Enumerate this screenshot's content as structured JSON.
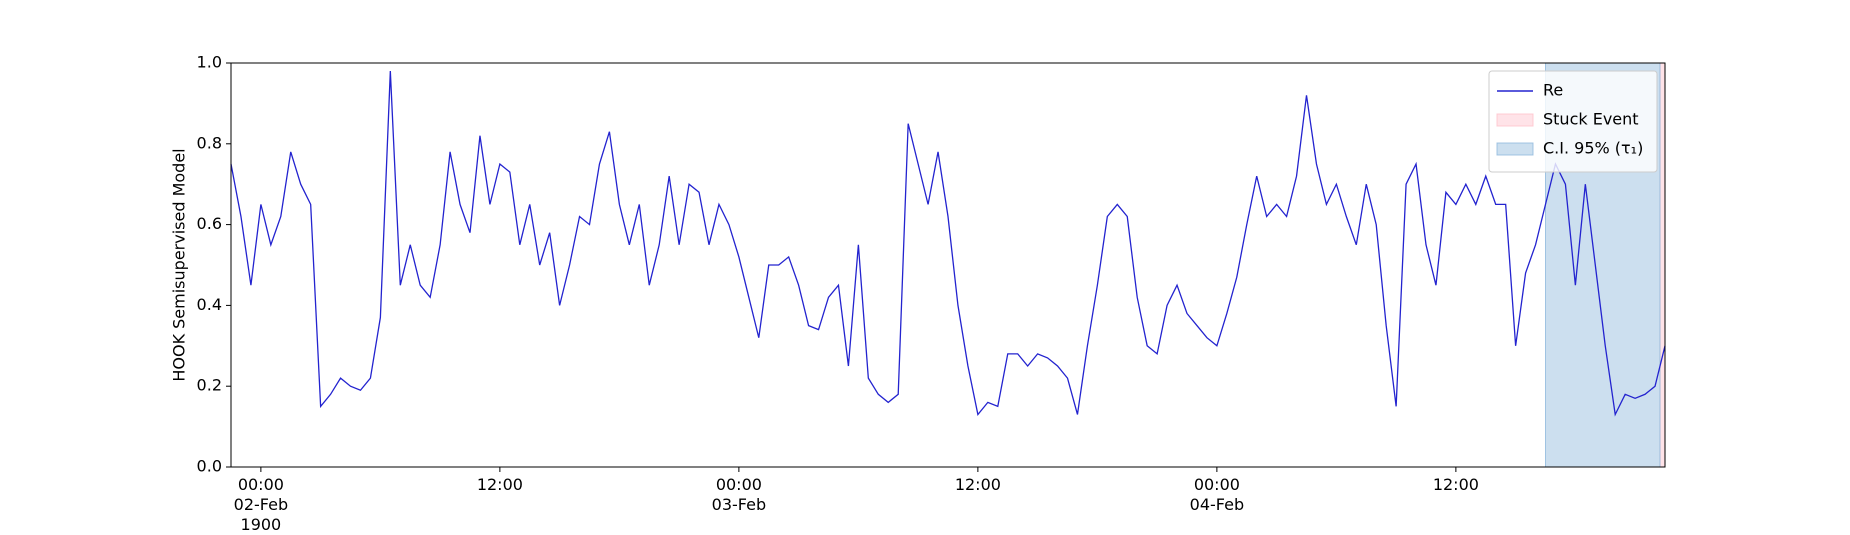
{
  "chart_data": {
    "type": "line",
    "ylabel": "HOOK Semisupervised Model",
    "x": [
      "1900-02-01T22:30",
      "1900-02-01T23:00",
      "1900-02-01T23:30",
      "1900-02-02T00:00",
      "1900-02-02T00:30",
      "1900-02-02T01:00",
      "1900-02-02T01:30",
      "1900-02-02T02:00",
      "1900-02-02T02:30",
      "1900-02-02T03:00",
      "1900-02-02T03:30",
      "1900-02-02T04:00",
      "1900-02-02T04:30",
      "1900-02-02T05:00",
      "1900-02-02T05:30",
      "1900-02-02T06:00",
      "1900-02-02T06:30",
      "1900-02-02T07:00",
      "1900-02-02T07:30",
      "1900-02-02T08:00",
      "1900-02-02T08:30",
      "1900-02-02T09:00",
      "1900-02-02T09:30",
      "1900-02-02T10:00",
      "1900-02-02T10:30",
      "1900-02-02T11:00",
      "1900-02-02T11:30",
      "1900-02-02T12:00",
      "1900-02-02T12:30",
      "1900-02-02T13:00",
      "1900-02-02T13:30",
      "1900-02-02T14:00",
      "1900-02-02T14:30",
      "1900-02-02T15:00",
      "1900-02-02T15:30",
      "1900-02-02T16:00",
      "1900-02-02T16:30",
      "1900-02-02T17:00",
      "1900-02-02T17:30",
      "1900-02-02T18:00",
      "1900-02-02T18:30",
      "1900-02-02T19:00",
      "1900-02-02T19:30",
      "1900-02-02T20:00",
      "1900-02-02T20:30",
      "1900-02-02T21:00",
      "1900-02-02T21:30",
      "1900-02-02T22:00",
      "1900-02-02T22:30",
      "1900-02-02T23:00",
      "1900-02-02T23:30",
      "1900-02-03T00:00",
      "1900-02-03T00:30",
      "1900-02-03T01:00",
      "1900-02-03T01:30",
      "1900-02-03T02:00",
      "1900-02-03T02:30",
      "1900-02-03T03:00",
      "1900-02-03T03:30",
      "1900-02-03T04:00",
      "1900-02-03T04:30",
      "1900-02-03T05:00",
      "1900-02-03T05:30",
      "1900-02-03T06:00",
      "1900-02-03T06:30",
      "1900-02-03T07:00",
      "1900-02-03T07:30",
      "1900-02-03T08:00",
      "1900-02-03T08:30",
      "1900-02-03T09:00",
      "1900-02-03T09:30",
      "1900-02-03T10:00",
      "1900-02-03T10:30",
      "1900-02-03T11:00",
      "1900-02-03T11:30",
      "1900-02-03T12:00",
      "1900-02-03T12:30",
      "1900-02-03T13:00",
      "1900-02-03T13:30",
      "1900-02-03T14:00",
      "1900-02-03T14:30",
      "1900-02-03T15:00",
      "1900-02-03T15:30",
      "1900-02-03T16:00",
      "1900-02-03T16:30",
      "1900-02-03T17:00",
      "1900-02-03T17:30",
      "1900-02-03T18:00",
      "1900-02-03T18:30",
      "1900-02-03T19:00",
      "1900-02-03T19:30",
      "1900-02-03T20:00",
      "1900-02-03T20:30",
      "1900-02-03T21:00",
      "1900-02-03T21:30",
      "1900-02-03T22:00",
      "1900-02-03T22:30",
      "1900-02-03T23:00",
      "1900-02-03T23:30",
      "1900-02-04T00:00",
      "1900-02-04T00:30",
      "1900-02-04T01:00",
      "1900-02-04T01:30",
      "1900-02-04T02:00",
      "1900-02-04T02:30",
      "1900-02-04T03:00",
      "1900-02-04T03:30",
      "1900-02-04T04:00",
      "1900-02-04T04:30",
      "1900-02-04T05:00",
      "1900-02-04T05:30",
      "1900-02-04T06:00",
      "1900-02-04T06:30",
      "1900-02-04T07:00",
      "1900-02-04T07:30",
      "1900-02-04T08:00",
      "1900-02-04T08:30",
      "1900-02-04T09:00",
      "1900-02-04T09:30",
      "1900-02-04T10:00",
      "1900-02-04T10:30",
      "1900-02-04T11:00",
      "1900-02-04T11:30",
      "1900-02-04T12:00",
      "1900-02-04T12:30",
      "1900-02-04T13:00",
      "1900-02-04T13:30",
      "1900-02-04T14:00",
      "1900-02-04T14:30",
      "1900-02-04T15:00",
      "1900-02-04T15:30",
      "1900-02-04T16:00",
      "1900-02-04T16:30",
      "1900-02-04T17:00",
      "1900-02-04T17:30",
      "1900-02-04T18:00",
      "1900-02-04T18:30",
      "1900-02-04T19:00",
      "1900-02-04T19:30",
      "1900-02-04T20:00",
      "1900-02-04T20:30",
      "1900-02-04T21:00",
      "1900-02-04T21:30",
      "1900-02-04T22:00",
      "1900-02-04T22:30"
    ],
    "series": [
      {
        "name": "Re",
        "color": "#2323cf",
        "values": [
          0.75,
          0.62,
          0.45,
          0.65,
          0.55,
          0.62,
          0.78,
          0.7,
          0.65,
          0.15,
          0.18,
          0.22,
          0.2,
          0.19,
          0.22,
          0.37,
          0.98,
          0.45,
          0.55,
          0.45,
          0.42,
          0.55,
          0.78,
          0.65,
          0.58,
          0.82,
          0.65,
          0.75,
          0.73,
          0.55,
          0.65,
          0.5,
          0.58,
          0.4,
          0.5,
          0.62,
          0.6,
          0.75,
          0.83,
          0.65,
          0.55,
          0.65,
          0.45,
          0.55,
          0.72,
          0.55,
          0.7,
          0.68,
          0.55,
          0.65,
          0.6,
          0.52,
          0.42,
          0.32,
          0.5,
          0.5,
          0.52,
          0.45,
          0.35,
          0.34,
          0.42,
          0.45,
          0.25,
          0.55,
          0.22,
          0.18,
          0.16,
          0.18,
          0.85,
          0.75,
          0.65,
          0.78,
          0.62,
          0.4,
          0.25,
          0.13,
          0.16,
          0.15,
          0.28,
          0.28,
          0.25,
          0.28,
          0.27,
          0.25,
          0.22,
          0.13,
          0.3,
          0.45,
          0.62,
          0.65,
          0.62,
          0.42,
          0.3,
          0.28,
          0.4,
          0.45,
          0.38,
          0.35,
          0.32,
          0.3,
          0.38,
          0.47,
          0.6,
          0.72,
          0.62,
          0.65,
          0.62,
          0.72,
          0.92,
          0.75,
          0.65,
          0.7,
          0.62,
          0.55,
          0.7,
          0.6,
          0.35,
          0.15,
          0.7,
          0.75,
          0.55,
          0.45,
          0.68,
          0.65,
          0.7,
          0.65,
          0.72,
          0.65,
          0.65,
          0.3,
          0.48,
          0.55,
          0.65,
          0.75,
          0.7,
          0.45,
          0.7,
          0.5,
          0.3,
          0.13,
          0.18,
          0.17,
          0.18,
          0.2,
          0.3
        ]
      }
    ],
    "spans": [
      {
        "name": "Stuck Event",
        "color": "#ffc0cb",
        "start": "1900-02-04T22:15",
        "end": "1900-02-04T22:30"
      },
      {
        "name": "C.I. 95% (τ₁)",
        "color": "#8db8dc",
        "start": "1900-02-04T16:30",
        "end": "1900-02-04T22:15"
      }
    ],
    "xlim": [
      "1900-02-01T22:30",
      "1900-02-04T22:30"
    ],
    "xticks": [
      {
        "value": "1900-02-02T00:00",
        "label": "00:00\n02-Feb\n1900"
      },
      {
        "value": "1900-02-02T12:00",
        "label": "12:00"
      },
      {
        "value": "1900-02-03T00:00",
        "label": "00:00\n03-Feb"
      },
      {
        "value": "1900-02-03T12:00",
        "label": "12:00"
      },
      {
        "value": "1900-02-04T00:00",
        "label": "00:00\n04-Feb"
      },
      {
        "value": "1900-02-04T12:00",
        "label": "12:00"
      }
    ],
    "ylim": [
      0,
      1
    ],
    "yticks": [
      {
        "value": 0,
        "label": "0.0"
      },
      0.2,
      0.4,
      0.6,
      0.8,
      {
        "value": 1,
        "label": "1.0"
      }
    ],
    "legend": "upper right"
  }
}
